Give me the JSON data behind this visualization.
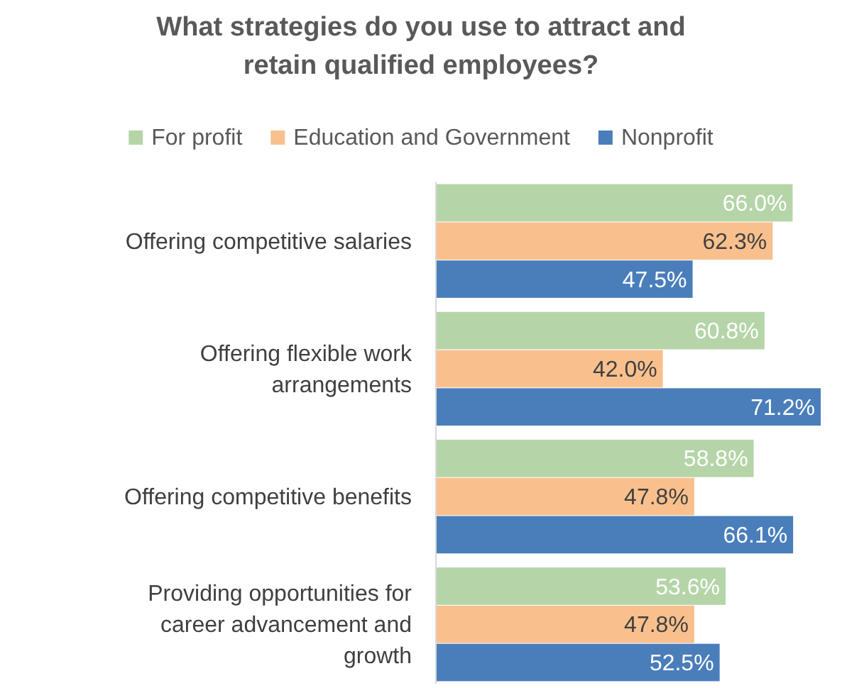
{
  "chart_data": {
    "type": "bar",
    "orientation": "horizontal",
    "title": "What strategies do you use to attract and retain qualified employees?",
    "categories": [
      "Offering competitive salaries",
      "Offering flexible work arrangements",
      "Offering competitive benefits",
      "Providing opportunities for career advancement and growth"
    ],
    "series": [
      {
        "name": "For profit",
        "color": "#b5d5a8",
        "values": [
          66.0,
          60.8,
          58.8,
          53.6
        ],
        "value_labels": [
          "66.0%",
          "60.8%",
          "58.8%",
          "53.6%"
        ]
      },
      {
        "name": "Education and Government",
        "color": "#f9c08e",
        "values": [
          62.3,
          42.0,
          47.8,
          47.8
        ],
        "value_labels": [
          "62.3%",
          "42.0%",
          "47.8%",
          "47.8%"
        ]
      },
      {
        "name": "Nonprofit",
        "color": "#4a7ebb",
        "values": [
          47.5,
          71.2,
          66.1,
          52.5
        ],
        "value_labels": [
          "47.5%",
          "71.2%",
          "66.1%",
          "52.5%"
        ]
      }
    ],
    "legend": "top"
  }
}
